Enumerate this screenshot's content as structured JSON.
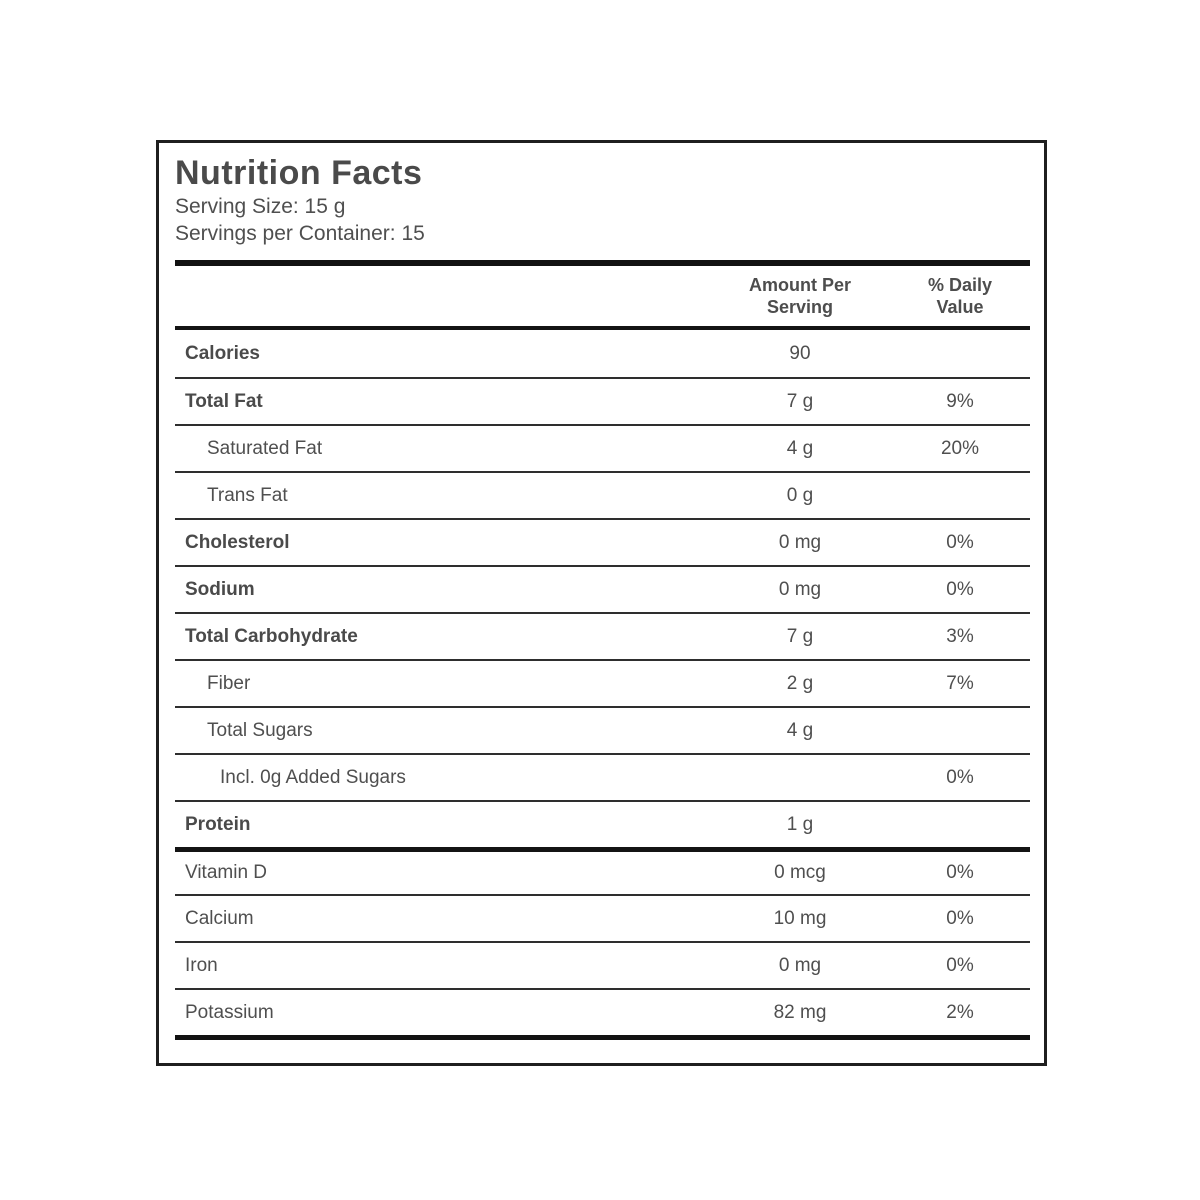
{
  "label": {
    "title": "Nutrition Facts",
    "serving_size": "Serving Size: 15 g",
    "servings_per_container": "Servings per Container: 15",
    "columns": {
      "amount": [
        "Amount Per",
        "Serving"
      ],
      "daily": [
        "% Daily",
        "Value"
      ]
    },
    "rows": [
      {
        "name": "Calories",
        "amount": "90",
        "dv": ""
      },
      {
        "name": "Total Fat",
        "amount": "7 g",
        "dv": "9%"
      },
      {
        "name": "Saturated Fat",
        "amount": "4 g",
        "dv": "20%"
      },
      {
        "name": "Trans Fat",
        "amount": "0 g",
        "dv": ""
      },
      {
        "name": "Cholesterol",
        "amount": "0 mg",
        "dv": "0%"
      },
      {
        "name": "Sodium",
        "amount": "0 mg",
        "dv": "0%"
      },
      {
        "name": "Total Carbohydrate",
        "amount": "7 g",
        "dv": "3%"
      },
      {
        "name": "Fiber",
        "amount": "2 g",
        "dv": "7%"
      },
      {
        "name": "Total Sugars",
        "amount": "4 g",
        "dv": ""
      },
      {
        "name": "Incl. 0g Added Sugars",
        "amount": "",
        "dv": "0%"
      },
      {
        "name": "Protein",
        "amount": "1 g",
        "dv": ""
      },
      {
        "name": "Vitamin D",
        "amount": "0 mcg",
        "dv": "0%"
      },
      {
        "name": "Calcium",
        "amount": "10 mg",
        "dv": "0%"
      },
      {
        "name": "Iron",
        "amount": "0 mg",
        "dv": "0%"
      },
      {
        "name": "Potassium",
        "amount": "82 mg",
        "dv": "2%"
      }
    ],
    "colors": {
      "text": "#4a4a4a",
      "thin_rule": "#2e2e2e",
      "thick_rule": "#121212",
      "background": "#ffffff"
    }
  }
}
